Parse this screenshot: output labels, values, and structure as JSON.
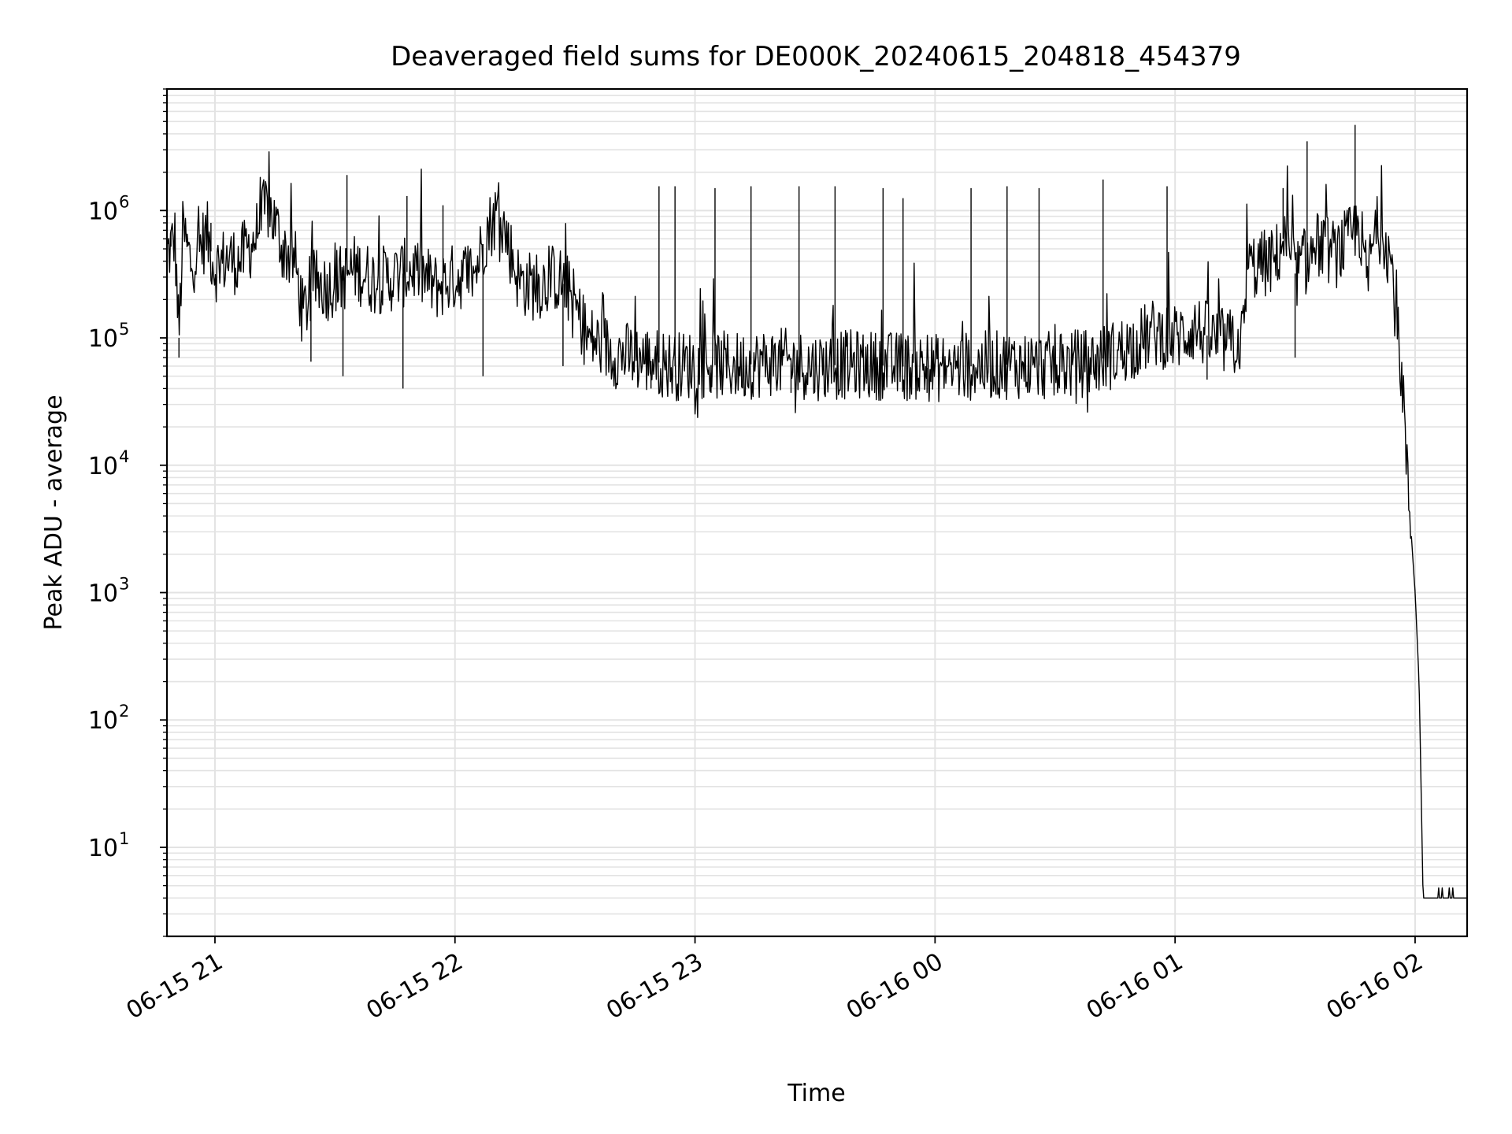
{
  "chart_data": {
    "type": "line",
    "title": "Deaveraged field sums for DE000K_20240615_204818_454379",
    "xlabel": "Time",
    "ylabel": "Peak ADU - average",
    "yscale": "log",
    "xlim": [
      "2024-06-15 20:48",
      "2024-06-16 02:13"
    ],
    "ylim": [
      2,
      9000000
    ],
    "grid": "both (major and minor), light gray",
    "line_color": "#000000",
    "x_ticks": [
      {
        "t": "2024-06-15 21:00",
        "label": "06-15 21"
      },
      {
        "t": "2024-06-15 22:00",
        "label": "06-15 22"
      },
      {
        "t": "2024-06-15 23:00",
        "label": "06-15 23"
      },
      {
        "t": "2024-06-16 00:00",
        "label": "06-16 00"
      },
      {
        "t": "2024-06-16 01:00",
        "label": "06-16 01"
      },
      {
        "t": "2024-06-16 02:00",
        "label": "06-16 02"
      }
    ],
    "y_ticks": [
      {
        "value": 10,
        "base": "10",
        "exp": "1"
      },
      {
        "value": 100,
        "base": "10",
        "exp": "2"
      },
      {
        "value": 1000,
        "base": "10",
        "exp": "3"
      },
      {
        "value": 10000,
        "base": "10",
        "exp": "4"
      },
      {
        "value": 100000,
        "base": "10",
        "exp": "5"
      },
      {
        "value": 1000000,
        "base": "10",
        "exp": "6"
      }
    ],
    "series": [
      {
        "points": [
          [
            "2024-06-15 20:48",
            450000
          ],
          [
            "2024-06-15 20:50",
            600000
          ],
          [
            "2024-06-15 20:51",
            100000
          ],
          [
            "2024-06-15 20:52",
            700000
          ],
          [
            "2024-06-15 20:54",
            380000
          ],
          [
            "2024-06-15 20:56",
            500000
          ],
          [
            "2024-06-15 20:58",
            650000
          ],
          [
            "2024-06-15 21:00",
            350000
          ],
          [
            "2024-06-15 21:03",
            420000
          ],
          [
            "2024-06-15 21:06",
            400000
          ],
          [
            "2024-06-15 21:10",
            600000
          ],
          [
            "2024-06-15 21:13",
            1100000
          ],
          [
            "2024-06-15 21:15",
            800000
          ],
          [
            "2024-06-15 21:17",
            500000
          ],
          [
            "2024-06-15 21:20",
            400000
          ],
          [
            "2024-06-15 21:22",
            150000
          ],
          [
            "2024-06-15 21:25",
            280000
          ],
          [
            "2024-06-15 21:28",
            250000
          ],
          [
            "2024-06-15 21:32",
            300000
          ],
          [
            "2024-06-15 21:35",
            350000
          ],
          [
            "2024-06-15 21:40",
            280000
          ],
          [
            "2024-06-15 21:45",
            300000
          ],
          [
            "2024-06-15 21:50",
            350000
          ],
          [
            "2024-06-15 21:55",
            250000
          ],
          [
            "2024-06-15 22:00",
            300000
          ],
          [
            "2024-06-15 22:05",
            330000
          ],
          [
            "2024-06-15 22:08",
            700000
          ],
          [
            "2024-06-15 22:11",
            1000000
          ],
          [
            "2024-06-15 22:13",
            600000
          ],
          [
            "2024-06-15 22:16",
            280000
          ],
          [
            "2024-06-15 22:20",
            250000
          ],
          [
            "2024-06-15 22:25",
            300000
          ],
          [
            "2024-06-15 22:28",
            250000
          ],
          [
            "2024-06-15 22:30",
            180000
          ],
          [
            "2024-06-15 22:33",
            100000
          ],
          [
            "2024-06-15 22:36",
            90000
          ],
          [
            "2024-06-15 22:40",
            75000
          ],
          [
            "2024-06-15 22:45",
            70000
          ],
          [
            "2024-06-15 22:50",
            65000
          ],
          [
            "2024-06-15 22:55",
            60000
          ],
          [
            "2024-06-15 23:00",
            62000
          ],
          [
            "2024-06-15 23:10",
            60000
          ],
          [
            "2024-06-15 23:20",
            65000
          ],
          [
            "2024-06-15 23:30",
            60000
          ],
          [
            "2024-06-15 23:40",
            62000
          ],
          [
            "2024-06-15 23:50",
            60000
          ],
          [
            "2024-06-16 00:00",
            58000
          ],
          [
            "2024-06-16 00:10",
            60000
          ],
          [
            "2024-06-16 00:20",
            62000
          ],
          [
            "2024-06-16 00:30",
            60000
          ],
          [
            "2024-06-16 00:40",
            65000
          ],
          [
            "2024-06-16 00:45",
            75000
          ],
          [
            "2024-06-16 00:50",
            90000
          ],
          [
            "2024-06-16 00:55",
            110000
          ],
          [
            "2024-06-16 01:00",
            100000
          ],
          [
            "2024-06-16 01:05",
            120000
          ],
          [
            "2024-06-16 01:10",
            95000
          ],
          [
            "2024-06-16 01:15",
            90000
          ],
          [
            "2024-06-16 01:17",
            100000
          ],
          [
            "2024-06-16 01:18",
            350000
          ],
          [
            "2024-06-16 01:22",
            380000
          ],
          [
            "2024-06-16 01:25",
            400000
          ],
          [
            "2024-06-16 01:27",
            600000
          ],
          [
            "2024-06-16 01:30",
            320000
          ],
          [
            "2024-06-16 01:33",
            400000
          ],
          [
            "2024-06-16 01:36",
            550000
          ],
          [
            "2024-06-16 01:40",
            450000
          ],
          [
            "2024-06-16 01:44",
            600000
          ],
          [
            "2024-06-16 01:46",
            800000
          ],
          [
            "2024-06-16 01:48",
            280000
          ],
          [
            "2024-06-16 01:50",
            700000
          ],
          [
            "2024-06-16 01:52",
            700000
          ],
          [
            "2024-06-16 01:54",
            400000
          ],
          [
            "2024-06-16 01:56",
            80000
          ],
          [
            "2024-06-16 01:57",
            40000
          ],
          [
            "2024-06-16 01:58",
            8000
          ],
          [
            "2024-06-16 01:59",
            3000
          ],
          [
            "2024-06-16 02:00",
            1000
          ],
          [
            "2024-06-16 02:01",
            200
          ],
          [
            "2024-06-16 02:02",
            4
          ],
          [
            "2024-06-16 02:13",
            4
          ]
        ],
        "spikes": [
          [
            "2024-06-15 20:49",
            700000
          ],
          [
            "2024-06-15 20:53",
            650000
          ],
          [
            "2024-06-15 20:59",
            800000
          ],
          [
            "2024-06-15 21:33",
            1900000
          ],
          [
            "2024-06-15 21:48",
            1300000
          ],
          [
            "2024-06-15 21:57",
            1100000
          ],
          [
            "2024-06-15 22:51",
            1550000
          ],
          [
            "2024-06-15 22:55",
            1550000
          ],
          [
            "2024-06-15 23:05",
            1500000
          ],
          [
            "2024-06-15 23:14",
            1550000
          ],
          [
            "2024-06-15 23:26",
            1550000
          ],
          [
            "2024-06-15 23:35",
            1550000
          ],
          [
            "2024-06-15 23:47",
            1500000
          ],
          [
            "2024-06-15 23:52",
            1250000
          ],
          [
            "2024-06-16 00:09",
            1500000
          ],
          [
            "2024-06-16 00:18",
            1550000
          ],
          [
            "2024-06-16 00:26",
            1500000
          ],
          [
            "2024-06-16 00:42",
            1750000
          ],
          [
            "2024-06-16 00:58",
            1550000
          ],
          [
            "2024-06-16 01:27",
            1500000
          ],
          [
            "2024-06-16 01:33",
            3500000
          ],
          [
            "2024-06-16 01:45",
            4700000
          ]
        ],
        "dips": [
          [
            "2024-06-15 20:51",
            70000
          ],
          [
            "2024-06-15 21:24",
            65000
          ],
          [
            "2024-06-15 21:32",
            50000
          ],
          [
            "2024-06-15 21:47",
            40000
          ],
          [
            "2024-06-15 22:07",
            50000
          ],
          [
            "2024-06-15 22:27",
            60000
          ],
          [
            "2024-06-15 22:49",
            40000
          ],
          [
            "2024-06-15 23:04",
            37000
          ],
          [
            "2024-06-15 23:24",
            37000
          ],
          [
            "2024-06-15 23:58",
            37000
          ],
          [
            "2024-06-16 01:08",
            47000
          ],
          [
            "2024-06-16 01:30",
            70000
          ]
        ]
      }
    ]
  }
}
